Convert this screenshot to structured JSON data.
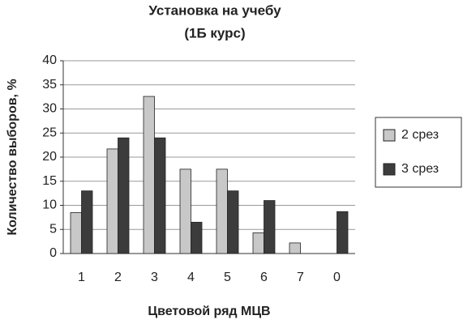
{
  "chart_data": {
    "type": "bar",
    "title": "Установка на учебу",
    "subtitle": "(1Б курс)",
    "x_label": "Цветовой ряд МЦВ",
    "y_label": "Количество выборов, %",
    "categories": [
      "1",
      "2",
      "3",
      "4",
      "5",
      "6",
      "7",
      "0"
    ],
    "series": [
      {
        "name": "2 срез",
        "color": "#c8c8c8",
        "values": [
          8.5,
          21.7,
          32.6,
          17.5,
          17.5,
          4.3,
          2.2,
          0
        ]
      },
      {
        "name": "3 срез",
        "color": "#3c3c3c",
        "values": [
          13,
          24,
          24,
          6.5,
          13,
          11,
          0,
          8.7
        ]
      }
    ],
    "ylim": [
      0,
      40
    ],
    "yticks": [
      0,
      5,
      10,
      15,
      20,
      25,
      30,
      35,
      40
    ],
    "grid": true,
    "legend": "right"
  }
}
